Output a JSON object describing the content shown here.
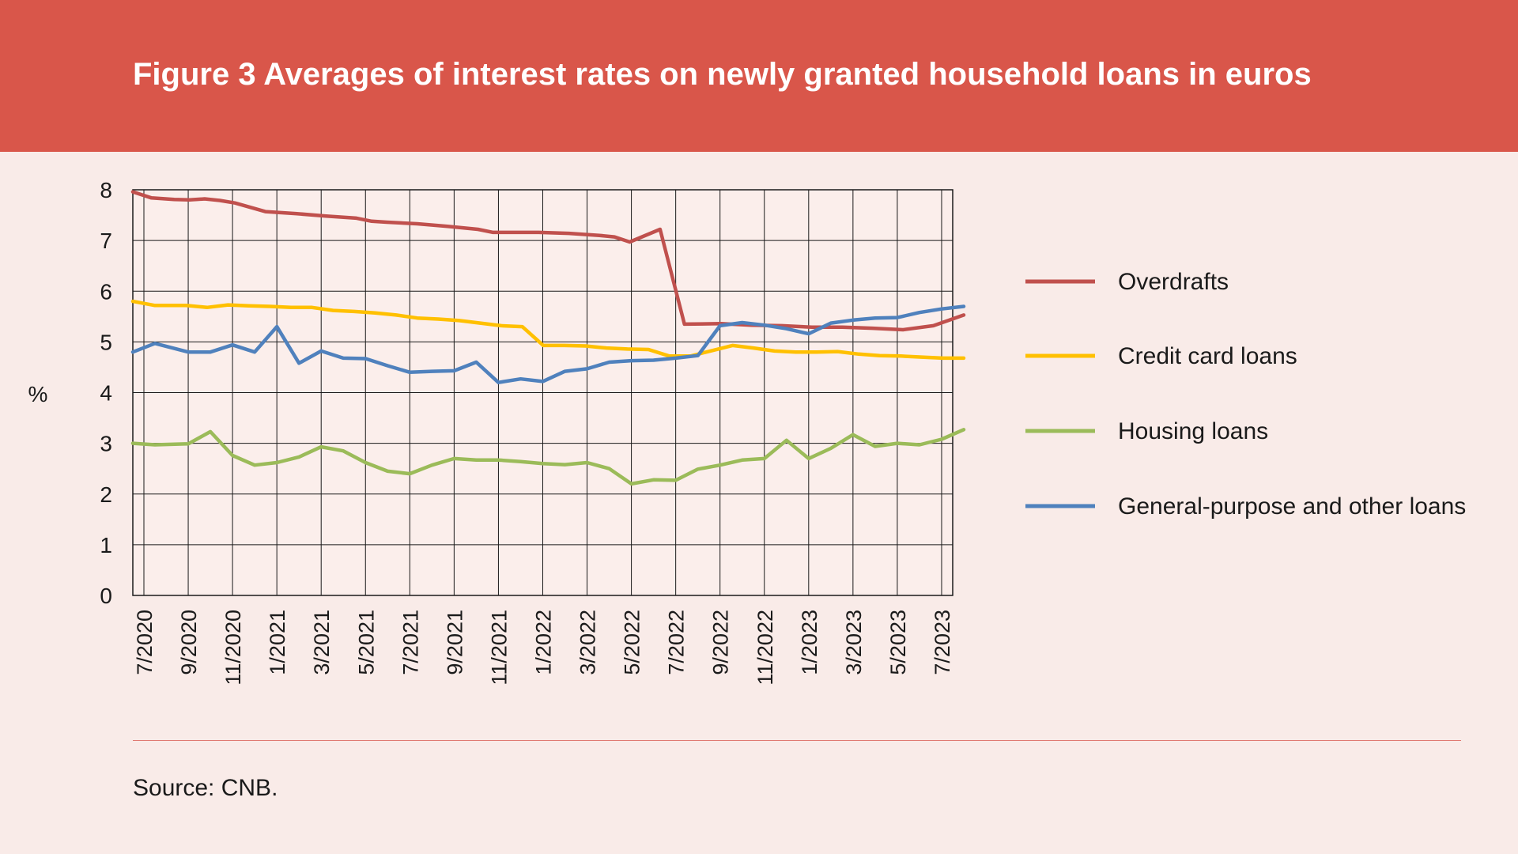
{
  "header": {
    "title": "Figure 3 Averages of interest rates on newly granted household loans in euros",
    "background_color": "#d9564a"
  },
  "footer": {
    "source": "Source: CNB."
  },
  "chart_data": {
    "type": "line",
    "title": "Figure 3 Averages of interest rates on newly granted household loans in euros",
    "ylabel": "%",
    "xlabel": "",
    "ylim": [
      0,
      8
    ],
    "yticks": [
      0,
      1,
      2,
      3,
      4,
      5,
      6,
      7,
      8
    ],
    "grid": true,
    "legend_position": "right",
    "x": [
      "7/2020",
      "8/2020",
      "9/2020",
      "10/2020",
      "11/2020",
      "12/2020",
      "1/2021",
      "2/2021",
      "3/2021",
      "4/2021",
      "5/2021",
      "6/2021",
      "7/2021",
      "8/2021",
      "9/2021",
      "10/2021",
      "11/2021",
      "12/2021",
      "1/2022",
      "2/2022",
      "3/2022",
      "4/2022",
      "5/2022",
      "6/2022",
      "7/2022",
      "8/2022",
      "9/2022",
      "10/2022",
      "11/2022",
      "12/2022",
      "1/2023",
      "2/2023",
      "3/2023",
      "4/2023",
      "5/2023",
      "6/2023",
      "7/2023"
    ],
    "x_tick_labels": [
      "7/2020",
      "9/2020",
      "11/2020",
      "1/2021",
      "3/2021",
      "5/2021",
      "7/2021",
      "9/2021",
      "11/2021",
      "1/2022",
      "3/2022",
      "5/2022",
      "7/2022",
      "9/2022",
      "11/2022",
      "1/2023",
      "3/2023",
      "5/2023",
      "7/2023"
    ],
    "series": [
      {
        "name": "Overdrafts",
        "color": "#c0504d",
        "values": [
          7.95,
          7.82,
          7.8,
          7.83,
          7.75,
          7.65,
          7.57,
          7.55,
          7.53,
          7.5,
          7.45,
          7.37,
          7.36,
          7.32,
          7.28,
          7.22,
          7.16,
          7.16,
          7.16,
          7.15,
          7.1,
          6.97,
          7.22,
          5.35,
          5.37,
          5.36,
          5.32,
          5.33,
          5.3,
          5.3,
          5.29,
          5.24,
          5.32,
          5.53,
          5.53,
          5.53,
          5.55
        ],
        "values_fine": [
          [
            0,
            7.96
          ],
          [
            0.25,
            7.84
          ],
          [
            1,
            7.81
          ],
          [
            1.5,
            7.8
          ],
          [
            2,
            7.82
          ],
          [
            2.5,
            7.79
          ],
          [
            3,
            7.74
          ],
          [
            4,
            7.57
          ],
          [
            5,
            7.53
          ],
          [
            6,
            7.48
          ],
          [
            7,
            7.44
          ],
          [
            7.5,
            7.38
          ],
          [
            8,
            7.36
          ],
          [
            9,
            7.33
          ],
          [
            10,
            7.28
          ],
          [
            11,
            7.22
          ],
          [
            11.5,
            7.16
          ],
          [
            13,
            7.16
          ],
          [
            14,
            7.14
          ],
          [
            15,
            7.1
          ],
          [
            15.5,
            7.07
          ],
          [
            16,
            6.97
          ],
          [
            17,
            7.22
          ],
          [
            17.8,
            5.35
          ],
          [
            19,
            5.36
          ],
          [
            20,
            5.33
          ],
          [
            21,
            5.32
          ],
          [
            22,
            5.29
          ],
          [
            23,
            5.29
          ],
          [
            24,
            5.27
          ],
          [
            25,
            5.24
          ],
          [
            26,
            5.32
          ],
          [
            27,
            5.53
          ]
        ]
      },
      {
        "name": "Credit card loans",
        "color": "#ffc000",
        "values_fine": [
          [
            0,
            5.8
          ],
          [
            0.25,
            5.72
          ],
          [
            1,
            5.72
          ],
          [
            1.5,
            5.68
          ],
          [
            2,
            5.73
          ],
          [
            2.5,
            5.71
          ],
          [
            3,
            5.7
          ],
          [
            3.5,
            5.68
          ],
          [
            4,
            5.68
          ],
          [
            4.5,
            5.62
          ],
          [
            5,
            5.6
          ],
          [
            5.5,
            5.57
          ],
          [
            6,
            5.53
          ],
          [
            6.5,
            5.47
          ],
          [
            7,
            5.45
          ],
          [
            7.5,
            5.42
          ],
          [
            8,
            5.37
          ],
          [
            8.5,
            5.32
          ],
          [
            9,
            5.3
          ],
          [
            9.5,
            4.93
          ],
          [
            10,
            4.93
          ],
          [
            10.5,
            4.92
          ],
          [
            11,
            4.88
          ],
          [
            11.5,
            4.86
          ],
          [
            12,
            4.85
          ],
          [
            12.5,
            4.72
          ],
          [
            13,
            4.72
          ],
          [
            14,
            4.93
          ],
          [
            14.5,
            4.88
          ],
          [
            15,
            4.82
          ],
          [
            15.5,
            4.8
          ],
          [
            16,
            4.8
          ],
          [
            16.5,
            4.81
          ],
          [
            17,
            4.76
          ],
          [
            17.5,
            4.73
          ],
          [
            18,
            4.72
          ],
          [
            18.5,
            4.7
          ],
          [
            19,
            4.68
          ],
          [
            19.5,
            4.68
          ]
        ]
      },
      {
        "name": "Housing loans",
        "color": "#9bbb59",
        "values_fine": [
          [
            0,
            3.0
          ],
          [
            0.25,
            2.97
          ],
          [
            1,
            2.99
          ],
          [
            1.5,
            3.23
          ],
          [
            2,
            2.76
          ],
          [
            2.5,
            2.57
          ],
          [
            3,
            2.62
          ],
          [
            3.5,
            2.73
          ],
          [
            4,
            2.93
          ],
          [
            4.5,
            2.85
          ],
          [
            5,
            2.62
          ],
          [
            5.5,
            2.45
          ],
          [
            6,
            2.4
          ],
          [
            6.5,
            2.57
          ],
          [
            7,
            2.7
          ],
          [
            7.5,
            2.67
          ],
          [
            8,
            2.67
          ],
          [
            8.5,
            2.64
          ],
          [
            9,
            2.6
          ],
          [
            9.5,
            2.58
          ],
          [
            10,
            2.62
          ],
          [
            10.5,
            2.5
          ],
          [
            11,
            2.2
          ],
          [
            11.5,
            2.28
          ],
          [
            12,
            2.27
          ],
          [
            12.5,
            2.49
          ],
          [
            13,
            2.57
          ],
          [
            13.5,
            2.67
          ],
          [
            14,
            2.7
          ],
          [
            14.5,
            3.06
          ],
          [
            15,
            2.7
          ],
          [
            15.5,
            2.9
          ],
          [
            16,
            3.17
          ],
          [
            16.5,
            2.94
          ],
          [
            17,
            3.0
          ],
          [
            17.5,
            2.97
          ],
          [
            18,
            3.08
          ],
          [
            18.5,
            3.27
          ]
        ]
      },
      {
        "name": "General-purpose and other loans",
        "color": "#4f81bd",
        "values_fine": [
          [
            0,
            4.8
          ],
          [
            0.25,
            4.97
          ],
          [
            1,
            4.8
          ],
          [
            1.5,
            4.8
          ],
          [
            2,
            4.94
          ],
          [
            2.5,
            4.8
          ],
          [
            3,
            5.3
          ],
          [
            3.5,
            4.58
          ],
          [
            4,
            4.82
          ],
          [
            4.5,
            4.68
          ],
          [
            5,
            4.67
          ],
          [
            5.5,
            4.53
          ],
          [
            6,
            4.4
          ],
          [
            6.5,
            4.42
          ],
          [
            7,
            4.43
          ],
          [
            7.5,
            4.6
          ],
          [
            8,
            4.2
          ],
          [
            8.5,
            4.27
          ],
          [
            9,
            4.22
          ],
          [
            9.5,
            4.42
          ],
          [
            10,
            4.47
          ],
          [
            10.5,
            4.6
          ],
          [
            11,
            4.63
          ],
          [
            11.5,
            4.64
          ],
          [
            12,
            4.68
          ],
          [
            12.5,
            4.73
          ],
          [
            13,
            5.32
          ],
          [
            13.5,
            5.38
          ],
          [
            14,
            5.33
          ],
          [
            14.5,
            5.26
          ],
          [
            15,
            5.16
          ],
          [
            15.5,
            5.37
          ],
          [
            16,
            5.43
          ],
          [
            16.5,
            5.47
          ],
          [
            17,
            5.48
          ],
          [
            17.5,
            5.58
          ],
          [
            18,
            5.65
          ],
          [
            18.5,
            5.7
          ]
        ]
      }
    ]
  }
}
